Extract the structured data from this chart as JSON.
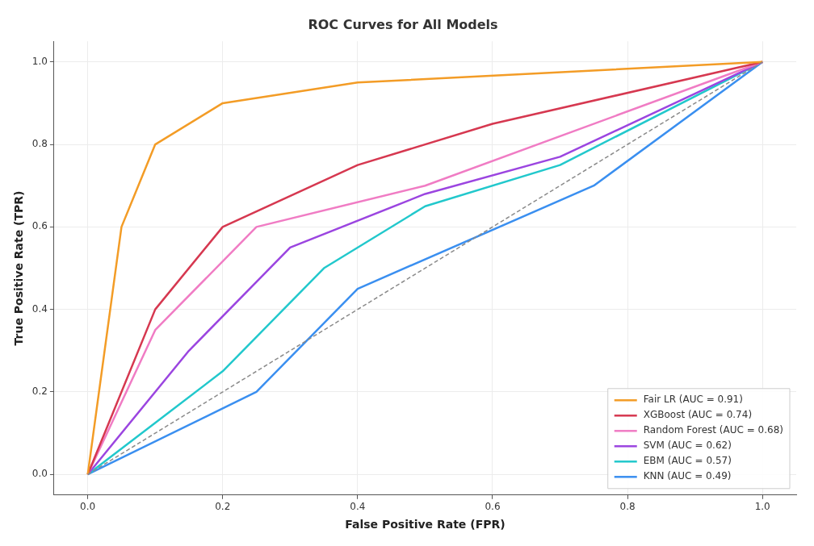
{
  "chart_data": {
    "type": "line",
    "title": "ROC Curves for All Models",
    "xlabel": "False Positive Rate (FPR)",
    "ylabel": "True Positive Rate (TPR)",
    "xlim": [
      -0.05,
      1.05
    ],
    "ylim": [
      -0.05,
      1.05
    ],
    "xticks": [
      {
        "value": 0,
        "label": "0.0"
      },
      {
        "value": 0.2,
        "label": "0.2"
      },
      {
        "value": 0.4,
        "label": "0.4"
      },
      {
        "value": 0.6,
        "label": "0.6"
      },
      {
        "value": 0.8,
        "label": "0.8"
      },
      {
        "value": 1,
        "label": "1.0"
      }
    ],
    "yticks": [
      {
        "value": 0,
        "label": "0.0"
      },
      {
        "value": 0.2,
        "label": "0.2"
      },
      {
        "value": 0.4,
        "label": "0.4"
      },
      {
        "value": 0.6,
        "label": "0.6"
      },
      {
        "value": 0.8,
        "label": "0.8"
      },
      {
        "value": 1,
        "label": "1.0"
      }
    ],
    "grid": true,
    "legend": "bottom right",
    "marker": "none",
    "series": [
      {
        "name": "Fair LR (AUC = 0.91)",
        "color": "#f39c26",
        "x": [
          0,
          0.05,
          0.1,
          0.2,
          0.4,
          1
        ],
        "values": [
          0,
          0.6,
          0.8,
          0.9,
          0.95,
          1
        ]
      },
      {
        "name": "XGBoost (AUC = 0.74)",
        "color": "#d63850",
        "x": [
          0,
          0.1,
          0.2,
          0.4,
          0.6,
          1
        ],
        "values": [
          0,
          0.4,
          0.6,
          0.75,
          0.85,
          1
        ]
      },
      {
        "name": "Random Forest (AUC = 0.68)",
        "color": "#f07cc4",
        "x": [
          0,
          0.1,
          0.25,
          0.5,
          1
        ],
        "values": [
          0,
          0.35,
          0.6,
          0.7,
          1
        ]
      },
      {
        "name": "SVM (AUC = 0.62)",
        "color": "#9b45e0",
        "x": [
          0,
          0.15,
          0.3,
          0.5,
          0.7,
          1
        ],
        "values": [
          0,
          0.3,
          0.55,
          0.68,
          0.77,
          1
        ]
      },
      {
        "name": "EBM (AUC = 0.57)",
        "color": "#22c8cc",
        "x": [
          0,
          0.2,
          0.35,
          0.5,
          0.7,
          1
        ],
        "values": [
          0,
          0.25,
          0.5,
          0.65,
          0.75,
          1
        ]
      },
      {
        "name": "KNN (AUC = 0.49)",
        "color": "#3a8ff0",
        "x": [
          0,
          0.25,
          0.4,
          0.75,
          1
        ],
        "values": [
          0,
          0.2,
          0.45,
          0.7,
          1
        ]
      },
      {
        "color": "#8a8a8a",
        "line_style": "dashed",
        "x": [
          0,
          1
        ],
        "values": [
          0,
          1
        ]
      }
    ]
  }
}
